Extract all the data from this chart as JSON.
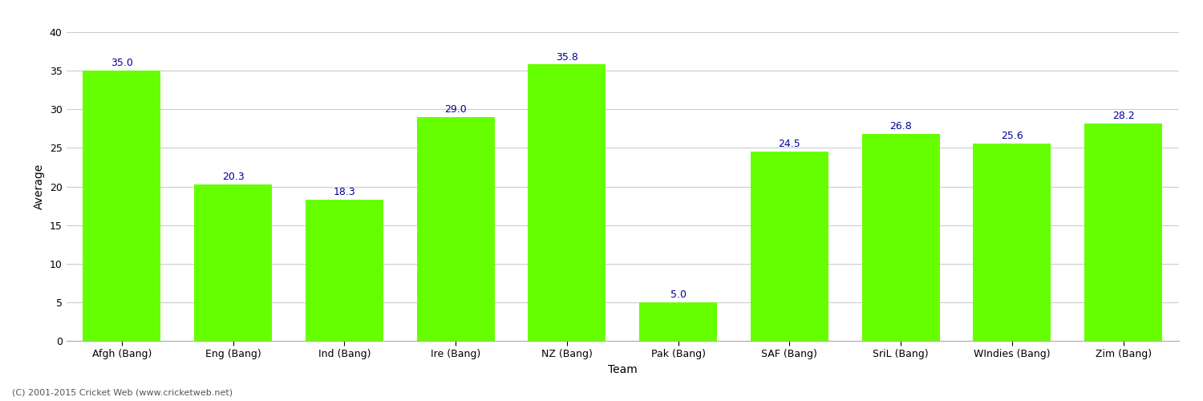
{
  "categories": [
    "Afgh (Bang)",
    "Eng (Bang)",
    "Ind (Bang)",
    "Ire (Bang)",
    "NZ (Bang)",
    "Pak (Bang)",
    "SAF (Bang)",
    "SriL (Bang)",
    "WIndies (Bang)",
    "Zim (Bang)"
  ],
  "values": [
    35.0,
    20.3,
    18.3,
    29.0,
    35.8,
    5.0,
    24.5,
    26.8,
    25.6,
    28.2
  ],
  "bar_color": "#66ff00",
  "bar_edge_color": "#66ff00",
  "label_color": "#000099",
  "xlabel": "Team",
  "ylabel": "Average",
  "ylim": [
    0,
    40
  ],
  "yticks": [
    0,
    5,
    10,
    15,
    20,
    25,
    30,
    35,
    40
  ],
  "grid_color": "#cccccc",
  "background_color": "#ffffff",
  "label_fontsize": 9,
  "axis_label_fontsize": 10,
  "tick_fontsize": 9,
  "footer_text": "(C) 2001-2015 Cricket Web (www.cricketweb.net)",
  "footer_fontsize": 8,
  "footer_color": "#555555"
}
